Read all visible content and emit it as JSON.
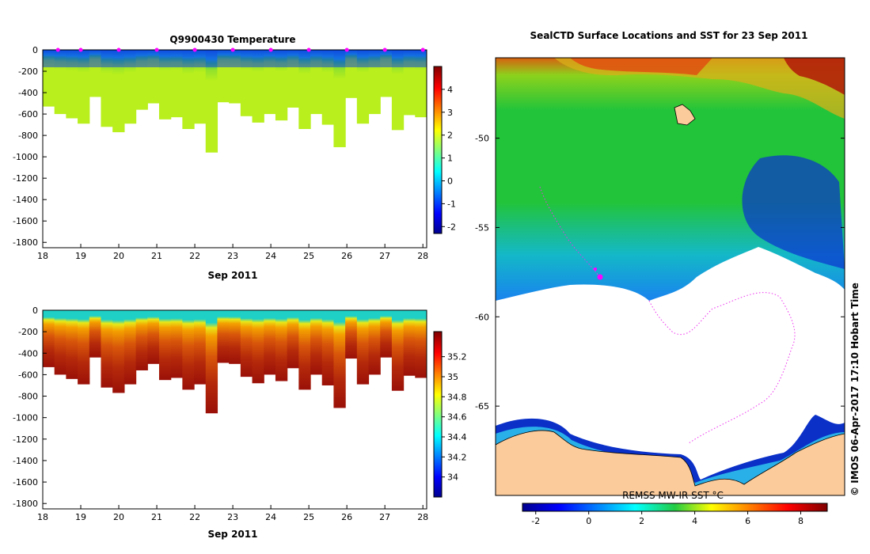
{
  "chart_data": [
    {
      "type": "heatmap",
      "title": "Q9900430  Temperature",
      "xlabel": "Sep 2011",
      "ylabel": "",
      "x_ticks": [
        "18",
        "19",
        "20",
        "21",
        "22",
        "23",
        "24",
        "25",
        "26",
        "27",
        "28"
      ],
      "y_ticks": [
        "0",
        "-200",
        "-400",
        "-600",
        "-800",
        "-1000",
        "-1200",
        "-1400",
        "-1600",
        "-1800"
      ],
      "xlim": [
        18,
        28.1
      ],
      "ylim": [
        -1850,
        0
      ],
      "colorbar": {
        "ticks": [
          "-2",
          "-1",
          "0",
          "1",
          "2",
          "3",
          "4"
        ],
        "range": [
          -2.3,
          5
        ]
      },
      "profile_times": [
        18.4,
        19.0,
        20.0,
        21.0,
        22.0,
        23.0,
        24.0,
        25.0,
        26.0,
        27.0,
        28.0
      ],
      "profile_max_depth": [
        -530,
        -600,
        -640,
        -690,
        -440,
        -720,
        -770,
        -690,
        -560,
        -500,
        -650,
        -630,
        -740,
        -690,
        -960,
        -490,
        -500,
        -620,
        -680,
        -600,
        -660,
        -540,
        -740,
        -600,
        -700,
        -910,
        -450,
        -690,
        -600,
        -440,
        -750,
        -610,
        -630
      ]
    },
    {
      "type": "heatmap",
      "title": "",
      "xlabel": "Sep 2011",
      "ylabel": "",
      "x_ticks": [
        "18",
        "19",
        "20",
        "21",
        "22",
        "23",
        "24",
        "25",
        "26",
        "27",
        "28"
      ],
      "y_ticks": [
        "0",
        "-200",
        "-400",
        "-600",
        "-800",
        "-1000",
        "-1200",
        "-1400",
        "-1600",
        "-1800"
      ],
      "xlim": [
        18,
        28.1
      ],
      "ylim": [
        -1850,
        0
      ],
      "colorbar": {
        "ticks": [
          "34",
          "34.2",
          "34.4",
          "34.6",
          "34.8",
          "35",
          "35.2"
        ],
        "range": [
          33.8,
          35.45
        ]
      }
    },
    {
      "type": "heatmap",
      "title": "SealCTD Surface Locations and SST for 23 Sep 2011",
      "xlabel": "",
      "ylabel": "",
      "y_ticks": [
        "-50",
        "-55",
        "-60",
        "-65"
      ],
      "ylim": [
        -70,
        -45.5
      ],
      "colorbar": {
        "label": "REMSS MW-IR SST °C",
        "ticks": [
          "-2",
          "0",
          "2",
          "4",
          "6",
          "8"
        ],
        "range": [
          -2.5,
          9
        ]
      }
    }
  ],
  "side_label": "© IMOS 06-Apr-2017 17:10 Hobart Time",
  "colors": {
    "land": "#fbcb9b",
    "track": "#ee33ee",
    "profile_marker": "#ff00ff",
    "axis": "#000000"
  }
}
